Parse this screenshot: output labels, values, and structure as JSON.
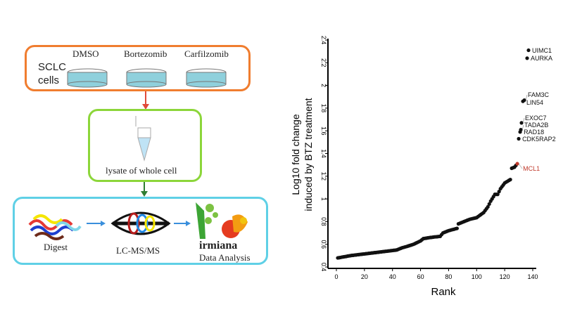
{
  "diagram": {
    "cells_label_1": "SCLC",
    "cells_label_2": "cells",
    "treatments": [
      "DMSO",
      "Bortezomib",
      "Carfilzomib"
    ],
    "lysate_label": "lysate of whole cell",
    "steps": [
      "Digest",
      "LC-MS/MS"
    ],
    "logo_text": "irmiana",
    "analysis_label": "Data Analysis",
    "colors": {
      "box1": "#f07d2f",
      "box2": "#8cd63a",
      "box3": "#5fd0e6",
      "arrow1": "#e04a3a",
      "arrow2": "#2e7d32",
      "arrow3": "#3a8fdc"
    }
  },
  "chart_data": {
    "type": "scatter",
    "xlabel": "Rank",
    "ylabel_line1": "Log10 fold change",
    "ylabel_line2": "induced by BTZ treatment",
    "xlim": [
      0,
      140
    ],
    "ylim": [
      0.4,
      2.4
    ],
    "xticks": [
      "0",
      "20",
      "40",
      "60",
      "80",
      "100",
      "120",
      "140"
    ],
    "yticks": [
      "0.4",
      "0.6",
      "0.8",
      "1",
      "1.2",
      "1.4",
      "1.6",
      "1.8",
      "2",
      "2.2",
      "2.4"
    ],
    "grid": false,
    "point_color": "#111111",
    "highlight_color": "#c0392b",
    "y": [
      0.48,
      0.482,
      0.484,
      0.487,
      0.489,
      0.491,
      0.493,
      0.496,
      0.498,
      0.5,
      0.502,
      0.503,
      0.505,
      0.506,
      0.508,
      0.509,
      0.511,
      0.512,
      0.514,
      0.515,
      0.517,
      0.518,
      0.52,
      0.521,
      0.523,
      0.524,
      0.526,
      0.527,
      0.529,
      0.53,
      0.532,
      0.533,
      0.535,
      0.536,
      0.538,
      0.539,
      0.541,
      0.542,
      0.544,
      0.545,
      0.547,
      0.548,
      0.55,
      0.555,
      0.56,
      0.565,
      0.57,
      0.573,
      0.577,
      0.58,
      0.584,
      0.588,
      0.592,
      0.596,
      0.6,
      0.606,
      0.612,
      0.618,
      0.624,
      0.63,
      0.64,
      0.65,
      0.652,
      0.654,
      0.656,
      0.658,
      0.66,
      0.661,
      0.663,
      0.665,
      0.666,
      0.667,
      0.669,
      0.67,
      0.685,
      0.7,
      0.705,
      0.71,
      0.715,
      0.72,
      0.723,
      0.727,
      0.73,
      0.733,
      0.737,
      0.74,
      0.78,
      0.785,
      0.79,
      0.795,
      0.8,
      0.805,
      0.81,
      0.815,
      0.82,
      0.823,
      0.826,
      0.829,
      0.832,
      0.835,
      0.844,
      0.853,
      0.862,
      0.871,
      0.88,
      0.897,
      0.913,
      0.93,
      0.955,
      0.98,
      1.0,
      1.02,
      1.04,
      1.04,
      1.04,
      1.065,
      1.09,
      1.107,
      1.123,
      1.14,
      1.148,
      1.155,
      1.163,
      1.17,
      1.27,
      1.275,
      1.28,
      1.295
    ],
    "labeled_points": [
      {
        "label": "MCL1",
        "x": 129,
        "y": 1.31,
        "highlight": true
      },
      {
        "label": "CDK5RAP2",
        "x": 130,
        "y": 1.53
      },
      {
        "label": "RAD18",
        "x": 131,
        "y": 1.59
      },
      {
        "label": "TADA2B",
        "x": 131.5,
        "y": 1.61
      },
      {
        "label": "EXOC7",
        "x": 132,
        "y": 1.67
      },
      {
        "label": "LIN54",
        "x": 133,
        "y": 1.86
      },
      {
        "label": "FAM3C",
        "x": 134,
        "y": 1.87
      },
      {
        "label": "AURKA",
        "x": 136,
        "y": 2.24
      },
      {
        "label": "UIMC1",
        "x": 137,
        "y": 2.31
      }
    ]
  }
}
